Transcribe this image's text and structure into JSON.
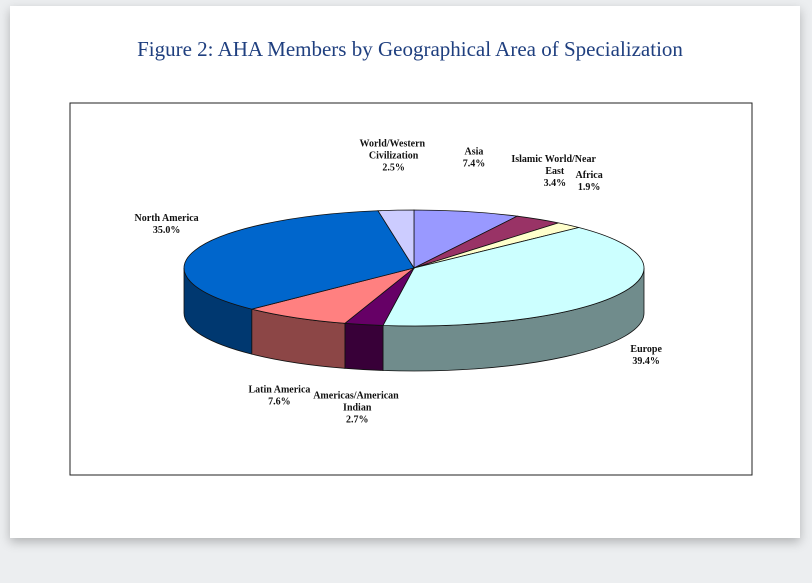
{
  "chart_data": {
    "type": "pie3d",
    "title": "Figure 2: AHA Members by Geographical Area of Specialization",
    "categories": [
      "Asia",
      "Islamic World/Near East",
      "Africa",
      "Europe",
      "Americas/American Indian",
      "Latin America",
      "North America",
      "World/Western Civilization"
    ],
    "values": [
      7.4,
      3.4,
      1.9,
      39.4,
      2.7,
      7.6,
      35.0,
      2.5
    ],
    "value_labels": [
      "7.4%",
      "3.4%",
      "1.9%",
      "39.4%",
      "2.7%",
      "7.6%",
      "35.0%",
      "2.5%"
    ],
    "colors": [
      "#9999ff",
      "#993366",
      "#ffffcc",
      "#ccffff",
      "#660066",
      "#ff8080",
      "#0066cc",
      "#ccccff"
    ]
  }
}
